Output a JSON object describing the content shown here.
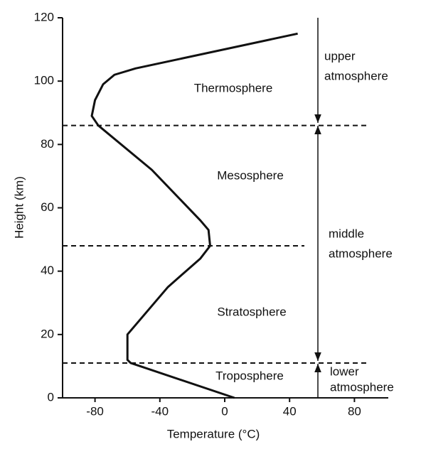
{
  "chart_data": {
    "type": "line",
    "xlabel": "Temperature (°C)",
    "ylabel": "Height (km)",
    "xlim": [
      -100,
      100
    ],
    "ylim": [
      0,
      120
    ],
    "xticks": [
      -80,
      -40,
      0,
      40,
      80
    ],
    "yticks": [
      0,
      20,
      40,
      60,
      80,
      100,
      120
    ],
    "series": [
      {
        "color": "#111111",
        "x": [
          6,
          -58,
          -60,
          -60,
          -35,
          -15,
          -9,
          -10,
          -15,
          -45,
          -78,
          -82,
          -80,
          -75,
          -68,
          -55,
          45
        ],
        "values": [
          0,
          11,
          12,
          20,
          35,
          44,
          48,
          53,
          56,
          72,
          86,
          89,
          94,
          99,
          102,
          104,
          115
        ]
      }
    ],
    "levels": [
      86,
      48,
      11
    ],
    "layers": [
      "Thermosphere",
      "Mesosphere",
      "Stratosphere",
      "Troposphere"
    ],
    "regions": [
      [
        "upper",
        "atmosphere"
      ],
      [
        "middle",
        "atmosphere"
      ],
      [
        "lower",
        "atmosphere"
      ]
    ]
  }
}
